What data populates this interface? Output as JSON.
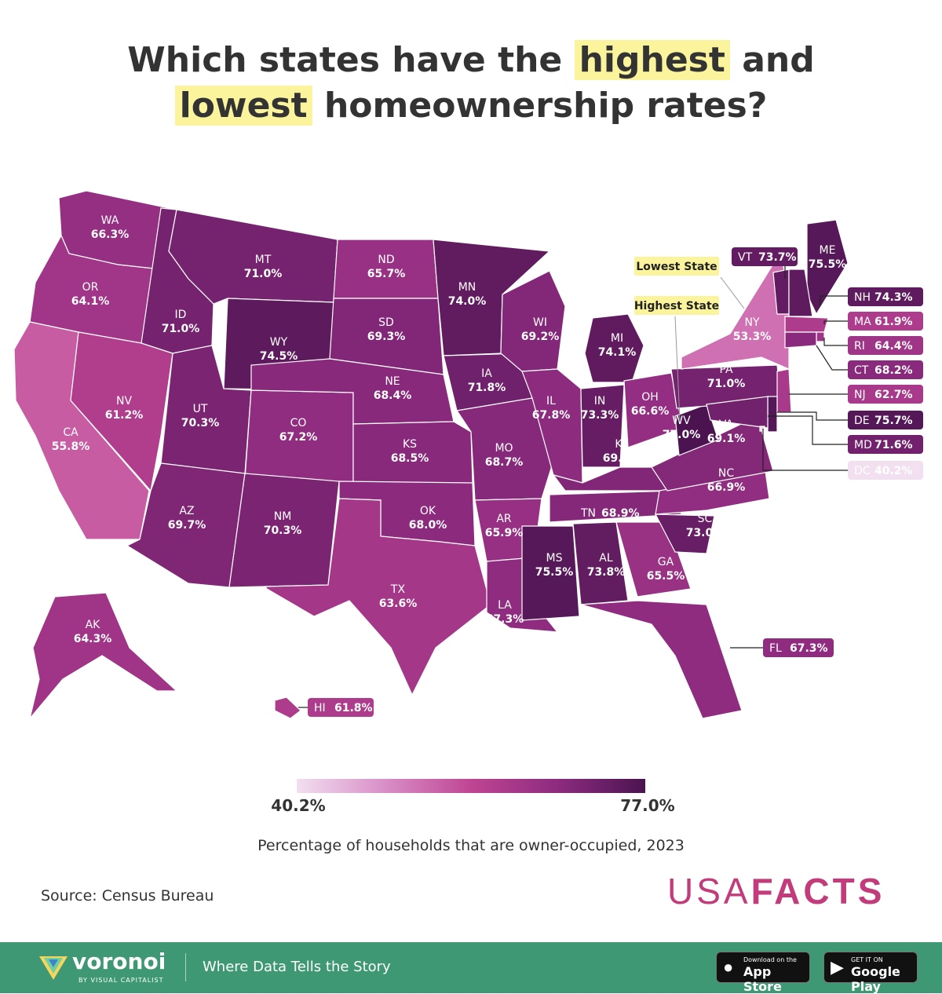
{
  "title": {
    "line1_pre": "Which states have the",
    "line1_hl": "highest",
    "line1_post": "and",
    "line2_hl": "lowest",
    "line2_post": "homeownership rates?"
  },
  "annotations": {
    "lowest": "Lowest State",
    "highest": "Highest State"
  },
  "legend": {
    "min": "40.2%",
    "max": "77.0%",
    "caption": "Percentage of households that are owner-occupied, 2023"
  },
  "source": "Source: Census Bureau",
  "brand": {
    "part1": "USA",
    "part2": "FACTS"
  },
  "footer": {
    "logo_name": "voronoi",
    "logo_sub": "BY VISUAL CAPITALIST",
    "tagline": "Where Data Tells the Story",
    "appstore_small": "Download on the",
    "appstore_big": "App Store",
    "gplay_small": "GET IT ON",
    "gplay_big": "Google Play"
  },
  "colors": {
    "min": "#f2dff0",
    "max": "#4b1450",
    "accent": "#fbf49c",
    "footer": "#3e9873",
    "brand": "#c23b7a"
  },
  "states": [
    {
      "code": "WA",
      "value": 66.3,
      "label": "66.3%"
    },
    {
      "code": "OR",
      "value": 64.1,
      "label": "64.1%"
    },
    {
      "code": "CA",
      "value": 55.8,
      "label": "55.8%"
    },
    {
      "code": "NV",
      "value": 61.2,
      "label": "61.2%"
    },
    {
      "code": "ID",
      "value": 71.0,
      "label": "71.0%"
    },
    {
      "code": "MT",
      "value": 71.0,
      "label": "71.0%"
    },
    {
      "code": "WY",
      "value": 74.5,
      "label": "74.5%"
    },
    {
      "code": "UT",
      "value": 70.3,
      "label": "70.3%"
    },
    {
      "code": "AZ",
      "value": 69.7,
      "label": "69.7%"
    },
    {
      "code": "CO",
      "value": 67.2,
      "label": "67.2%"
    },
    {
      "code": "NM",
      "value": 70.3,
      "label": "70.3%"
    },
    {
      "code": "ND",
      "value": 65.7,
      "label": "65.7%"
    },
    {
      "code": "SD",
      "value": 69.3,
      "label": "69.3%"
    },
    {
      "code": "NE",
      "value": 68.4,
      "label": "68.4%"
    },
    {
      "code": "KS",
      "value": 68.5,
      "label": "68.5%"
    },
    {
      "code": "OK",
      "value": 68.0,
      "label": "68.0%"
    },
    {
      "code": "TX",
      "value": 63.6,
      "label": "63.6%"
    },
    {
      "code": "MN",
      "value": 74.0,
      "label": "74.0%"
    },
    {
      "code": "IA",
      "value": 71.8,
      "label": "71.8%"
    },
    {
      "code": "MO",
      "value": 68.7,
      "label": "68.7%"
    },
    {
      "code": "AR",
      "value": 65.9,
      "label": "65.9%"
    },
    {
      "code": "LA",
      "value": 67.3,
      "label": "67.3%"
    },
    {
      "code": "WI",
      "value": 69.2,
      "label": "69.2%"
    },
    {
      "code": "IL",
      "value": 67.8,
      "label": "67.8%"
    },
    {
      "code": "MI",
      "value": 74.1,
      "label": "74.1%"
    },
    {
      "code": "IN",
      "value": 73.3,
      "label": "73.3%"
    },
    {
      "code": "OH",
      "value": 66.6,
      "label": "66.6%"
    },
    {
      "code": "KY",
      "value": 69.4,
      "label": "69.4%"
    },
    {
      "code": "TN",
      "value": 68.9,
      "label": "68.9%"
    },
    {
      "code": "MS",
      "value": 75.5,
      "label": "75.5%"
    },
    {
      "code": "AL",
      "value": 73.8,
      "label": "73.8%"
    },
    {
      "code": "GA",
      "value": 65.5,
      "label": "65.5%"
    },
    {
      "code": "FL",
      "value": 67.3,
      "label": "67.3%"
    },
    {
      "code": "SC",
      "value": 73.0,
      "label": "73.0%"
    },
    {
      "code": "NC",
      "value": 66.9,
      "label": "66.9%"
    },
    {
      "code": "VA",
      "value": 69.1,
      "label": "69.1%"
    },
    {
      "code": "WV",
      "value": 77.0,
      "label": "77.0%"
    },
    {
      "code": "PA",
      "value": 71.0,
      "label": "71.0%"
    },
    {
      "code": "NY",
      "value": 53.3,
      "label": "53.3%"
    },
    {
      "code": "VT",
      "value": 73.7,
      "label": "73.7%"
    },
    {
      "code": "ME",
      "value": 75.5,
      "label": "75.5%"
    },
    {
      "code": "NH",
      "value": 74.3,
      "label": "74.3%"
    },
    {
      "code": "MA",
      "value": 61.9,
      "label": "61.9%"
    },
    {
      "code": "RI",
      "value": 64.4,
      "label": "64.4%"
    },
    {
      "code": "CT",
      "value": 68.2,
      "label": "68.2%"
    },
    {
      "code": "NJ",
      "value": 62.7,
      "label": "62.7%"
    },
    {
      "code": "DE",
      "value": 75.7,
      "label": "75.7%"
    },
    {
      "code": "MD",
      "value": 71.6,
      "label": "71.6%"
    },
    {
      "code": "DC",
      "value": 40.2,
      "label": "40.2%"
    },
    {
      "code": "AK",
      "value": 64.3,
      "label": "64.3%"
    },
    {
      "code": "HI",
      "value": 61.8,
      "label": "61.8%"
    }
  ]
}
